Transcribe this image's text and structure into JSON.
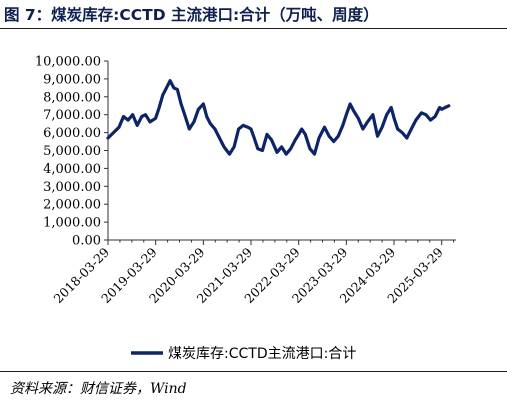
{
  "figure": {
    "title": "图 7：煤炭库存:CCTD 主流港口:合计（万吨、周度）",
    "source": "资料来源：财信证券，Wind"
  },
  "chart_data": {
    "type": "line",
    "title": "",
    "xlabel": "",
    "ylabel": "",
    "ylim": [
      0,
      10000
    ],
    "yticks": [
      "0.00",
      "1,000.00",
      "2,000.00",
      "3,000.00",
      "4,000.00",
      "5,000.00",
      "6,000.00",
      "7,000.00",
      "8,000.00",
      "9,000.00",
      "10,000.00"
    ],
    "xticks": [
      "2018-03-29",
      "2019-03-29",
      "2020-03-29",
      "2021-03-29",
      "2022-03-29",
      "2023-03-29",
      "2024-03-29",
      "2025-03-29"
    ],
    "line_color": "#0d2468",
    "legend_position": "bottom",
    "grid": false,
    "series": [
      {
        "name": "煤炭库存:CCTD主流港口:合计",
        "x": [
          "2018-03-29",
          "2018-05-10",
          "2018-06-21",
          "2018-07-26",
          "2018-08-30",
          "2018-10-04",
          "2018-11-08",
          "2018-12-13",
          "2019-01-10",
          "2019-02-14",
          "2019-03-29",
          "2019-04-25",
          "2019-05-23",
          "2019-06-20",
          "2019-07-18",
          "2019-08-15",
          "2019-09-12",
          "2019-10-10",
          "2019-11-07",
          "2019-12-12",
          "2020-01-16",
          "2020-02-20",
          "2020-03-29",
          "2020-04-23",
          "2020-05-21",
          "2020-06-25",
          "2020-07-30",
          "2020-09-03",
          "2020-10-15",
          "2020-11-19",
          "2020-12-24",
          "2021-01-28",
          "2021-03-04",
          "2021-03-29",
          "2021-04-22",
          "2021-05-20",
          "2021-06-24",
          "2021-07-29",
          "2021-09-02",
          "2021-10-14",
          "2021-11-18",
          "2021-12-23",
          "2022-01-27",
          "2022-03-03",
          "2022-03-29",
          "2022-04-21",
          "2022-05-19",
          "2022-06-23",
          "2022-07-28",
          "2022-09-01",
          "2022-10-13",
          "2022-11-17",
          "2022-12-22",
          "2023-01-26",
          "2023-03-02",
          "2023-03-29",
          "2023-04-27",
          "2023-05-25",
          "2023-06-29",
          "2023-08-03",
          "2023-09-07",
          "2023-10-19",
          "2023-11-23",
          "2023-12-28",
          "2024-02-01",
          "2024-03-07",
          "2024-03-29",
          "2024-04-25",
          "2024-05-30",
          "2024-07-04",
          "2024-08-08",
          "2024-09-12",
          "2024-10-24",
          "2024-11-28",
          "2025-01-02",
          "2025-02-06",
          "2025-03-13",
          "2025-03-29",
          "2025-04-24",
          "2025-05-22"
        ],
        "values": [
          5700,
          6000,
          6300,
          6900,
          6700,
          7000,
          6400,
          6900,
          7000,
          6600,
          6800,
          7400,
          8100,
          8500,
          8900,
          8500,
          8400,
          7600,
          7000,
          6200,
          6600,
          7300,
          7600,
          6900,
          6500,
          6200,
          5700,
          5200,
          4800,
          5200,
          6200,
          6400,
          6300,
          6200,
          5700,
          5100,
          5000,
          5900,
          5600,
          4900,
          5200,
          4800,
          5100,
          5600,
          5900,
          6200,
          5900,
          5100,
          4800,
          5700,
          6300,
          5800,
          5500,
          5800,
          6400,
          7000,
          7600,
          7200,
          6800,
          6200,
          6600,
          7000,
          5800,
          6300,
          7000,
          7400,
          6800,
          6200,
          6000,
          5700,
          6200,
          6700,
          7100,
          7000,
          6700,
          6900,
          7400,
          7300,
          7400,
          7500
        ]
      }
    ]
  }
}
